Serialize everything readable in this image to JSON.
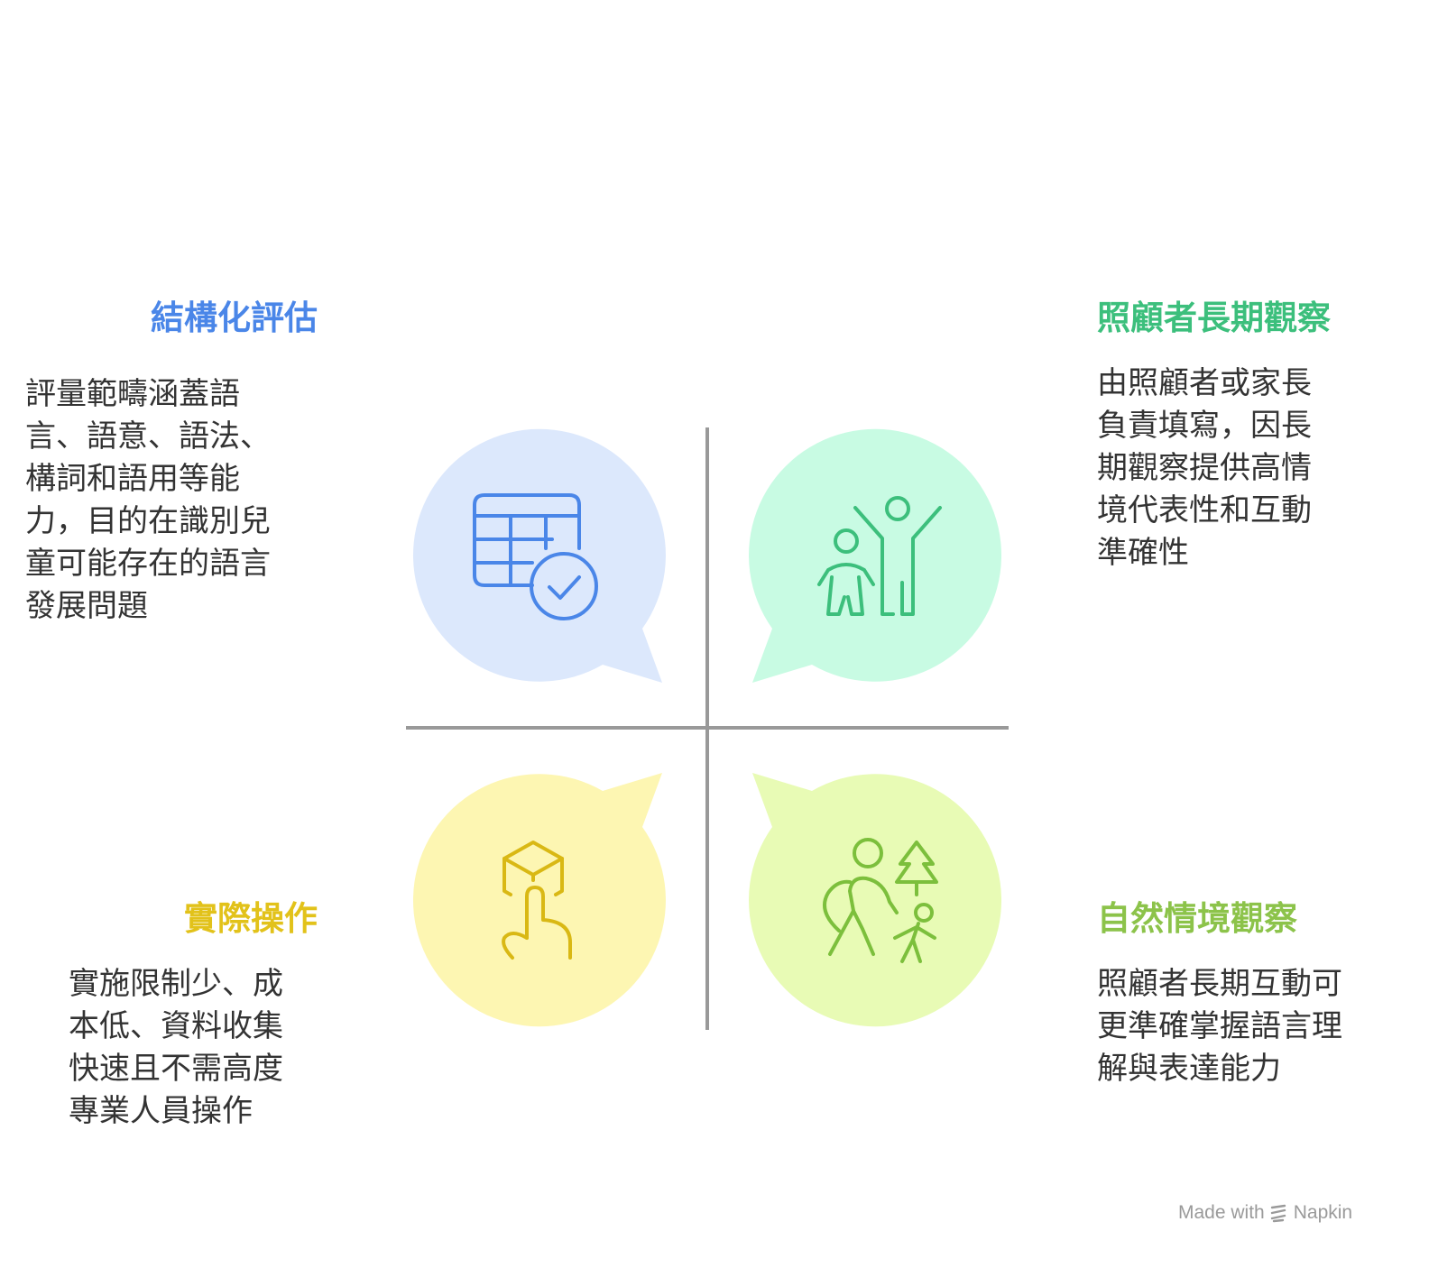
{
  "quadrants": {
    "top_left": {
      "title": "結構化評估",
      "description": "評量範疇涵蓋語\n言、語意、語法、\n構詞和語用等能\n力，目的在識別兒\n童可能存在的語言\n發展問題",
      "icon": "table-check-icon",
      "title_color": "#4a86e8",
      "bubble_color": "#dce8fc",
      "icon_color": "#4a86e8"
    },
    "top_right": {
      "title": "照顧者長期觀察",
      "description": "由照顧者或家長\n負責填寫，因長\n期觀察提供高情\n境代表性和互動\n準確性",
      "icon": "parent-child-icon",
      "title_color": "#3cbf7c",
      "bubble_color": "#c8fbe3",
      "icon_color": "#3cbf7c"
    },
    "bottom_left": {
      "title": "實際操作",
      "description": "實施限制少、成\n本低、資料收集\n快速且不需高度\n專業人員操作",
      "icon": "hand-cube-icon",
      "title_color": "#e2c21a",
      "bubble_color": "#fdf6b2",
      "icon_color": "#d9b814"
    },
    "bottom_right": {
      "title": "自然情境觀察",
      "description": "照顧者長期互動可\n更準確掌握語言理\n解與表達能力",
      "icon": "family-outdoor-icon",
      "title_color": "#8cc34a",
      "bubble_color": "#e8fbb5",
      "icon_color": "#7cbf3c"
    }
  },
  "axis_color": "#999999",
  "footer": {
    "made_with": "Made with",
    "brand": "Napkin",
    "icon": "napkin-logo-icon"
  }
}
